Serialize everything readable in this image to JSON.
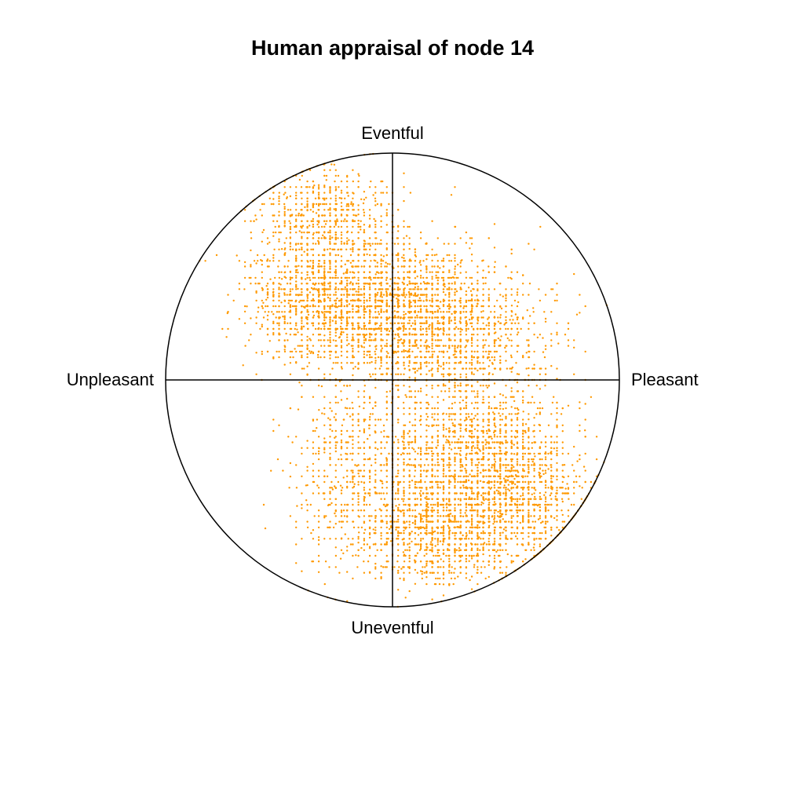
{
  "chart_data": {
    "type": "scatter",
    "title": "Human appraisal of node 14",
    "axis_labels": {
      "top": "Eventful",
      "bottom": "Uneventful",
      "left": "Unpleasant",
      "right": "Pleasant"
    },
    "x_label": "Pleasant",
    "y_label": "Eventful",
    "xlim": [
      -1,
      1
    ],
    "ylim": [
      -1,
      1
    ],
    "boundary": "unit-circle",
    "point_color": "#ff9900",
    "axis_color": "#000000",
    "clusters": [
      {
        "center": [
          -0.25,
          0.35
        ],
        "spread": [
          0.18,
          0.14
        ],
        "weight": 0.2
      },
      {
        "center": [
          0.12,
          0.28
        ],
        "spread": [
          0.16,
          0.14
        ],
        "weight": 0.17
      },
      {
        "center": [
          -0.3,
          0.72
        ],
        "spread": [
          0.15,
          0.1
        ],
        "weight": 0.07
      },
      {
        "center": [
          0.35,
          -0.35
        ],
        "spread": [
          0.2,
          0.18
        ],
        "weight": 0.22
      },
      {
        "center": [
          0.2,
          -0.65
        ],
        "spread": [
          0.16,
          0.12
        ],
        "weight": 0.13
      },
      {
        "center": [
          0.55,
          -0.55
        ],
        "spread": [
          0.14,
          0.14
        ],
        "weight": 0.09
      },
      {
        "center": [
          -0.2,
          -0.4
        ],
        "spread": [
          0.12,
          0.22
        ],
        "weight": 0.06
      },
      {
        "center": [
          0.4,
          0.2
        ],
        "spread": [
          0.18,
          0.14
        ],
        "weight": 0.06
      }
    ],
    "n_points": 9000
  }
}
